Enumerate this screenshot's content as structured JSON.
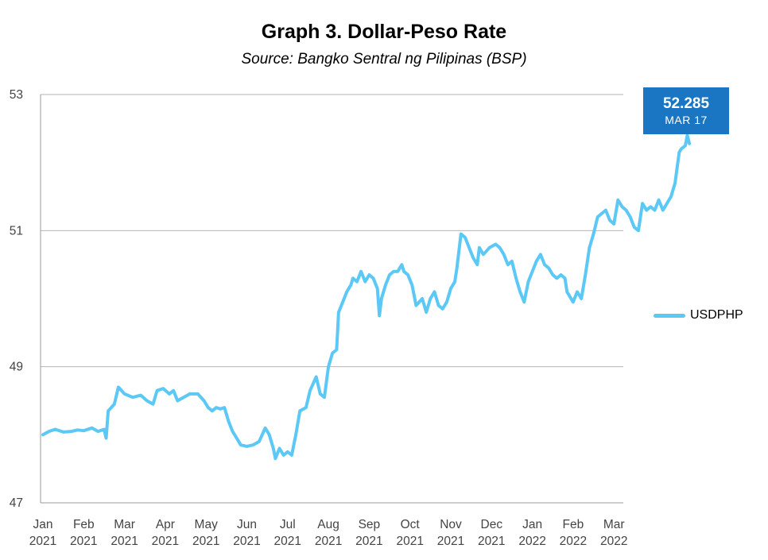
{
  "title": "Graph 3. Dollar-Peso Rate",
  "subtitle": "Source: Bangko Sentral ng Pilipinas (BSP)",
  "callout": {
    "value": "52.285",
    "date": "MAR 17"
  },
  "colors": {
    "series": "#5bc8f5",
    "callout_bg": "#1a76c2",
    "grid": "#b5b5b5"
  },
  "chart_data": {
    "type": "line",
    "ylim": [
      47,
      53
    ],
    "y_ticks": [
      "53",
      "51",
      "49",
      "47"
    ],
    "x_ticks": [
      {
        "month": "Jan",
        "year": "2021"
      },
      {
        "month": "Feb",
        "year": "2021"
      },
      {
        "month": "Mar",
        "year": "2021"
      },
      {
        "month": "Apr",
        "year": "2021"
      },
      {
        "month": "May",
        "year": "2021"
      },
      {
        "month": "Jun",
        "year": "2021"
      },
      {
        "month": "Jul",
        "year": "2021"
      },
      {
        "month": "Aug",
        "year": "2021"
      },
      {
        "month": "Sep",
        "year": "2021"
      },
      {
        "month": "Oct",
        "year": "2021"
      },
      {
        "month": "Nov",
        "year": "2021"
      },
      {
        "month": "Dec",
        "year": "2021"
      },
      {
        "month": "Jan",
        "year": "2022"
      },
      {
        "month": "Feb",
        "year": "2022"
      },
      {
        "month": "Mar",
        "year": "2022"
      }
    ],
    "grid": true,
    "legend": "right",
    "series": [
      {
        "name": "USDPHP",
        "points": [
          [
            0,
            48.0
          ],
          [
            0.15,
            48.05
          ],
          [
            0.3,
            48.08
          ],
          [
            0.5,
            48.04
          ],
          [
            0.7,
            48.05
          ],
          [
            0.85,
            48.07
          ],
          [
            1.0,
            48.06
          ],
          [
            1.2,
            48.1
          ],
          [
            1.35,
            48.05
          ],
          [
            1.5,
            48.08
          ],
          [
            1.55,
            47.95
          ],
          [
            1.6,
            48.35
          ],
          [
            1.75,
            48.45
          ],
          [
            1.85,
            48.7
          ],
          [
            2.0,
            48.6
          ],
          [
            2.2,
            48.55
          ],
          [
            2.4,
            48.58
          ],
          [
            2.55,
            48.5
          ],
          [
            2.7,
            48.45
          ],
          [
            2.8,
            48.65
          ],
          [
            2.95,
            48.68
          ],
          [
            3.1,
            48.6
          ],
          [
            3.2,
            48.65
          ],
          [
            3.3,
            48.5
          ],
          [
            3.45,
            48.55
          ],
          [
            3.6,
            48.6
          ],
          [
            3.8,
            48.6
          ],
          [
            3.95,
            48.5
          ],
          [
            4.05,
            48.4
          ],
          [
            4.15,
            48.35
          ],
          [
            4.25,
            48.4
          ],
          [
            4.35,
            48.38
          ],
          [
            4.45,
            48.4
          ],
          [
            4.55,
            48.2
          ],
          [
            4.65,
            48.05
          ],
          [
            4.75,
            47.95
          ],
          [
            4.85,
            47.85
          ],
          [
            5.0,
            47.83
          ],
          [
            5.15,
            47.85
          ],
          [
            5.3,
            47.9
          ],
          [
            5.45,
            48.1
          ],
          [
            5.55,
            48.0
          ],
          [
            5.65,
            47.8
          ],
          [
            5.7,
            47.65
          ],
          [
            5.8,
            47.8
          ],
          [
            5.9,
            47.7
          ],
          [
            6.0,
            47.75
          ],
          [
            6.1,
            47.7
          ],
          [
            6.2,
            48.0
          ],
          [
            6.3,
            48.35
          ],
          [
            6.45,
            48.4
          ],
          [
            6.55,
            48.65
          ],
          [
            6.7,
            48.85
          ],
          [
            6.8,
            48.6
          ],
          [
            6.9,
            48.55
          ],
          [
            7.0,
            49.0
          ],
          [
            7.1,
            49.2
          ],
          [
            7.2,
            49.25
          ],
          [
            7.25,
            49.8
          ],
          [
            7.35,
            49.95
          ],
          [
            7.45,
            50.1
          ],
          [
            7.55,
            50.2
          ],
          [
            7.6,
            50.3
          ],
          [
            7.7,
            50.25
          ],
          [
            7.8,
            50.4
          ],
          [
            7.9,
            50.25
          ],
          [
            8.0,
            50.35
          ],
          [
            8.1,
            50.3
          ],
          [
            8.2,
            50.15
          ],
          [
            8.25,
            49.75
          ],
          [
            8.3,
            50.0
          ],
          [
            8.4,
            50.2
          ],
          [
            8.5,
            50.35
          ],
          [
            8.6,
            50.4
          ],
          [
            8.7,
            50.4
          ],
          [
            8.8,
            50.5
          ],
          [
            8.85,
            50.4
          ],
          [
            8.95,
            50.35
          ],
          [
            9.05,
            50.2
          ],
          [
            9.15,
            49.9
          ],
          [
            9.3,
            50.0
          ],
          [
            9.4,
            49.8
          ],
          [
            9.5,
            50.0
          ],
          [
            9.6,
            50.1
          ],
          [
            9.7,
            49.9
          ],
          [
            9.8,
            49.85
          ],
          [
            9.9,
            49.95
          ],
          [
            10.0,
            50.15
          ],
          [
            10.1,
            50.25
          ],
          [
            10.15,
            50.45
          ],
          [
            10.25,
            50.95
          ],
          [
            10.35,
            50.9
          ],
          [
            10.45,
            50.75
          ],
          [
            10.55,
            50.6
          ],
          [
            10.65,
            50.5
          ],
          [
            10.7,
            50.75
          ],
          [
            10.8,
            50.65
          ],
          [
            10.95,
            50.75
          ],
          [
            11.1,
            50.8
          ],
          [
            11.2,
            50.75
          ],
          [
            11.3,
            50.65
          ],
          [
            11.4,
            50.5
          ],
          [
            11.5,
            50.55
          ],
          [
            11.6,
            50.3
          ],
          [
            11.7,
            50.1
          ],
          [
            11.8,
            49.95
          ],
          [
            11.9,
            50.25
          ],
          [
            12.0,
            50.4
          ],
          [
            12.1,
            50.55
          ],
          [
            12.2,
            50.65
          ],
          [
            12.3,
            50.5
          ],
          [
            12.4,
            50.45
          ],
          [
            12.5,
            50.35
          ],
          [
            12.6,
            50.3
          ],
          [
            12.7,
            50.35
          ],
          [
            12.8,
            50.3
          ],
          [
            12.85,
            50.1
          ],
          [
            13.0,
            49.95
          ],
          [
            13.1,
            50.1
          ],
          [
            13.2,
            50.0
          ],
          [
            13.3,
            50.35
          ],
          [
            13.4,
            50.75
          ],
          [
            13.5,
            50.95
          ],
          [
            13.6,
            51.2
          ],
          [
            13.7,
            51.25
          ],
          [
            13.8,
            51.3
          ],
          [
            13.9,
            51.15
          ],
          [
            14.0,
            51.1
          ],
          [
            14.1,
            51.45
          ],
          [
            14.2,
            51.35
          ],
          [
            14.3,
            51.3
          ],
          [
            14.4,
            51.2
          ],
          [
            14.5,
            51.05
          ],
          [
            14.6,
            51.0
          ],
          [
            14.7,
            51.4
          ],
          [
            14.8,
            51.3
          ],
          [
            14.9,
            51.35
          ],
          [
            15.0,
            51.3
          ],
          [
            15.1,
            51.45
          ],
          [
            15.2,
            51.3
          ],
          [
            15.3,
            51.4
          ],
          [
            15.4,
            51.5
          ],
          [
            15.5,
            51.7
          ],
          [
            15.6,
            52.15
          ],
          [
            15.65,
            52.2
          ],
          [
            15.75,
            52.25
          ],
          [
            15.8,
            52.4
          ],
          [
            15.85,
            52.28
          ]
        ]
      }
    ]
  }
}
